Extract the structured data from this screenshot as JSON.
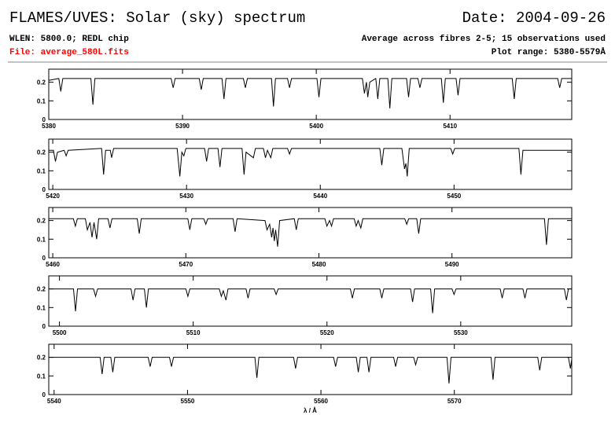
{
  "header": {
    "title": "FLAMES/UVES: Solar (sky) spectrum",
    "date": "Date: 2004-09-26",
    "wlen": "WLEN: 5800.0; REDL chip",
    "average": "Average across fibres 2-5; 15 observations used",
    "file": "File: average_580L.fits",
    "range": "Plot range: 5380-5579Å"
  },
  "chart_data": [
    {
      "type": "line",
      "color": "#000000",
      "xlim": [
        5380,
        5419.1
      ],
      "ylim": [
        0,
        0.27
      ],
      "xticks": [
        5380,
        5390,
        5400,
        5410
      ],
      "yticks": [
        0,
        0.1,
        0.2
      ],
      "x": [
        5380.0,
        5380.75,
        5380.9,
        5381.05,
        5383.15,
        5383.3,
        5383.45,
        5389.15,
        5389.3,
        5389.45,
        5391.25,
        5391.4,
        5391.55,
        5392.95,
        5393.1,
        5393.25,
        5394.55,
        5394.7,
        5394.85,
        5396.65,
        5396.8,
        5396.95,
        5397.85,
        5398.0,
        5398.15,
        5400.05,
        5400.2,
        5400.35,
        5403.45,
        5403.6,
        5403.75,
        5403.85,
        5404.0,
        5404.45,
        5404.6,
        5404.75,
        5405.35,
        5405.5,
        5405.65,
        5406.75,
        5406.9,
        5407.05,
        5407.6,
        5407.75,
        5407.9,
        5409.35,
        5409.5,
        5409.65,
        5410.45,
        5410.6,
        5410.75,
        5414.65,
        5414.8,
        5414.95,
        5418.05,
        5418.2,
        5418.35,
        5419.1
      ],
      "values": [
        0.21,
        0.22,
        0.15,
        0.22,
        0.22,
        0.08,
        0.22,
        0.22,
        0.17,
        0.22,
        0.22,
        0.16,
        0.22,
        0.22,
        0.11,
        0.22,
        0.22,
        0.17,
        0.22,
        0.22,
        0.07,
        0.22,
        0.22,
        0.17,
        0.22,
        0.22,
        0.12,
        0.22,
        0.22,
        0.14,
        0.2,
        0.12,
        0.2,
        0.22,
        0.11,
        0.22,
        0.22,
        0.06,
        0.22,
        0.22,
        0.12,
        0.22,
        0.22,
        0.17,
        0.22,
        0.22,
        0.09,
        0.22,
        0.22,
        0.13,
        0.22,
        0.22,
        0.11,
        0.22,
        0.22,
        0.17,
        0.22,
        0.22
      ]
    },
    {
      "type": "line",
      "color": "#000000",
      "xlim": [
        5419.7,
        5458.8
      ],
      "ylim": [
        0,
        0.27
      ],
      "xticks": [
        5420,
        5430,
        5440,
        5450
      ],
      "yticks": [
        0,
        0.1,
        0.2
      ],
      "x": [
        5419.7,
        5420.05,
        5420.2,
        5420.35,
        5420.85,
        5421.0,
        5421.15,
        5423.65,
        5423.8,
        5423.95,
        5424.3,
        5424.4,
        5424.55,
        5429.3,
        5429.5,
        5429.65,
        5429.8,
        5429.95,
        5431.35,
        5431.5,
        5431.65,
        5432.35,
        5432.5,
        5432.65,
        5434.15,
        5434.3,
        5434.45,
        5435.0,
        5435.15,
        5435.75,
        5435.9,
        5436.05,
        5436.3,
        5436.45,
        5437.55,
        5437.7,
        5437.85,
        5444.45,
        5444.6,
        5444.75,
        5446.1,
        5446.3,
        5446.4,
        5446.5,
        5446.65,
        5449.75,
        5449.9,
        5450.05,
        5454.85,
        5455.0,
        5455.15,
        5458.8
      ],
      "values": [
        0.21,
        0.21,
        0.15,
        0.2,
        0.21,
        0.18,
        0.21,
        0.22,
        0.08,
        0.21,
        0.21,
        0.17,
        0.22,
        0.22,
        0.07,
        0.2,
        0.18,
        0.22,
        0.22,
        0.15,
        0.22,
        0.22,
        0.12,
        0.22,
        0.22,
        0.08,
        0.2,
        0.17,
        0.22,
        0.22,
        0.17,
        0.21,
        0.17,
        0.22,
        0.22,
        0.19,
        0.22,
        0.22,
        0.13,
        0.22,
        0.22,
        0.11,
        0.14,
        0.07,
        0.22,
        0.22,
        0.19,
        0.22,
        0.22,
        0.08,
        0.21,
        0.21
      ]
    },
    {
      "type": "line",
      "color": "#000000",
      "xlim": [
        5459.7,
        5499.0
      ],
      "ylim": [
        0,
        0.27
      ],
      "xticks": [
        5460,
        5470,
        5480,
        5490
      ],
      "yticks": [
        0,
        0.1,
        0.2
      ],
      "x": [
        5459.7,
        5461.55,
        5461.7,
        5461.85,
        5462.45,
        5462.6,
        5462.8,
        5462.95,
        5463.1,
        5463.3,
        5463.45,
        5464.15,
        5464.3,
        5464.45,
        5466.35,
        5466.5,
        5466.65,
        5470.15,
        5470.3,
        5470.45,
        5471.35,
        5471.5,
        5471.65,
        5473.55,
        5473.7,
        5473.85,
        5475.95,
        5476.1,
        5476.3,
        5476.45,
        5476.55,
        5476.65,
        5476.75,
        5476.9,
        5477.05,
        5478.15,
        5478.3,
        5478.45,
        5480.45,
        5480.6,
        5480.8,
        5480.95,
        5481.1,
        5482.65,
        5482.8,
        5482.95,
        5483.15,
        5483.3,
        5486.45,
        5486.6,
        5486.75,
        5487.35,
        5487.5,
        5487.65,
        5496.95,
        5497.1,
        5497.25,
        5499.0
      ],
      "values": [
        0.21,
        0.21,
        0.17,
        0.21,
        0.21,
        0.15,
        0.19,
        0.11,
        0.19,
        0.1,
        0.21,
        0.21,
        0.16,
        0.21,
        0.21,
        0.13,
        0.21,
        0.21,
        0.15,
        0.21,
        0.21,
        0.18,
        0.21,
        0.21,
        0.14,
        0.21,
        0.2,
        0.15,
        0.18,
        0.11,
        0.16,
        0.09,
        0.15,
        0.06,
        0.2,
        0.21,
        0.15,
        0.21,
        0.21,
        0.17,
        0.2,
        0.17,
        0.21,
        0.21,
        0.17,
        0.2,
        0.16,
        0.21,
        0.21,
        0.18,
        0.21,
        0.21,
        0.13,
        0.21,
        0.21,
        0.07,
        0.21,
        0.21
      ]
    },
    {
      "type": "line",
      "color": "#000000",
      "xlim": [
        5499.2,
        5538.3
      ],
      "ylim": [
        0,
        0.27
      ],
      "xticks": [
        5500,
        5510,
        5520,
        5530
      ],
      "yticks": [
        0,
        0.1,
        0.2
      ],
      "x": [
        5499.2,
        5501.05,
        5501.2,
        5501.35,
        5502.55,
        5502.7,
        5502.85,
        5505.35,
        5505.5,
        5505.65,
        5506.35,
        5506.5,
        5506.65,
        5509.45,
        5509.6,
        5509.75,
        5511.95,
        5512.1,
        5512.25,
        5512.45,
        5512.6,
        5513.95,
        5514.1,
        5514.25,
        5516.05,
        5516.2,
        5516.35,
        5521.75,
        5521.9,
        5522.05,
        5523.95,
        5524.1,
        5524.25,
        5526.25,
        5526.4,
        5526.55,
        5527.75,
        5527.9,
        5528.05,
        5529.35,
        5529.5,
        5529.65,
        5532.95,
        5533.1,
        5533.25,
        5534.65,
        5534.8,
        5534.95,
        5537.75,
        5537.9,
        5538.05,
        5538.3
      ],
      "values": [
        0.2,
        0.2,
        0.08,
        0.2,
        0.2,
        0.16,
        0.2,
        0.2,
        0.14,
        0.2,
        0.2,
        0.1,
        0.2,
        0.2,
        0.16,
        0.2,
        0.2,
        0.16,
        0.19,
        0.14,
        0.2,
        0.2,
        0.15,
        0.2,
        0.2,
        0.17,
        0.2,
        0.2,
        0.15,
        0.2,
        0.2,
        0.15,
        0.2,
        0.2,
        0.13,
        0.2,
        0.2,
        0.07,
        0.2,
        0.2,
        0.17,
        0.2,
        0.2,
        0.15,
        0.2,
        0.2,
        0.15,
        0.2,
        0.2,
        0.14,
        0.2,
        0.2
      ]
    },
    {
      "type": "line",
      "color": "#000000",
      "xlim": [
        5539.6,
        5578.8
      ],
      "ylim": [
        0,
        0.27
      ],
      "xticks": [
        5540,
        5550,
        5560,
        5570
      ],
      "yticks": [
        0,
        0.1,
        0.2
      ],
      "xlabel": "λ / Å",
      "x": [
        5539.6,
        5543.45,
        5543.6,
        5543.75,
        5544.25,
        5544.4,
        5544.55,
        5547.05,
        5547.2,
        5547.35,
        5548.65,
        5548.8,
        5548.95,
        5555.05,
        5555.2,
        5555.35,
        5557.95,
        5558.1,
        5558.25,
        5560.95,
        5561.1,
        5561.25,
        5562.65,
        5562.8,
        5562.95,
        5563.45,
        5563.6,
        5563.75,
        5565.45,
        5565.6,
        5565.75,
        5566.95,
        5567.1,
        5567.25,
        5569.45,
        5569.6,
        5569.75,
        5572.75,
        5572.9,
        5573.05,
        5576.25,
        5576.4,
        5576.55,
        5578.55,
        5578.7,
        5578.8
      ],
      "values": [
        0.2,
        0.2,
        0.11,
        0.2,
        0.2,
        0.12,
        0.2,
        0.2,
        0.15,
        0.2,
        0.2,
        0.15,
        0.2,
        0.2,
        0.09,
        0.2,
        0.2,
        0.14,
        0.2,
        0.2,
        0.15,
        0.2,
        0.2,
        0.12,
        0.2,
        0.2,
        0.12,
        0.2,
        0.2,
        0.15,
        0.2,
        0.2,
        0.16,
        0.2,
        0.2,
        0.06,
        0.2,
        0.2,
        0.08,
        0.2,
        0.2,
        0.13,
        0.2,
        0.2,
        0.14,
        0.19
      ]
    }
  ]
}
